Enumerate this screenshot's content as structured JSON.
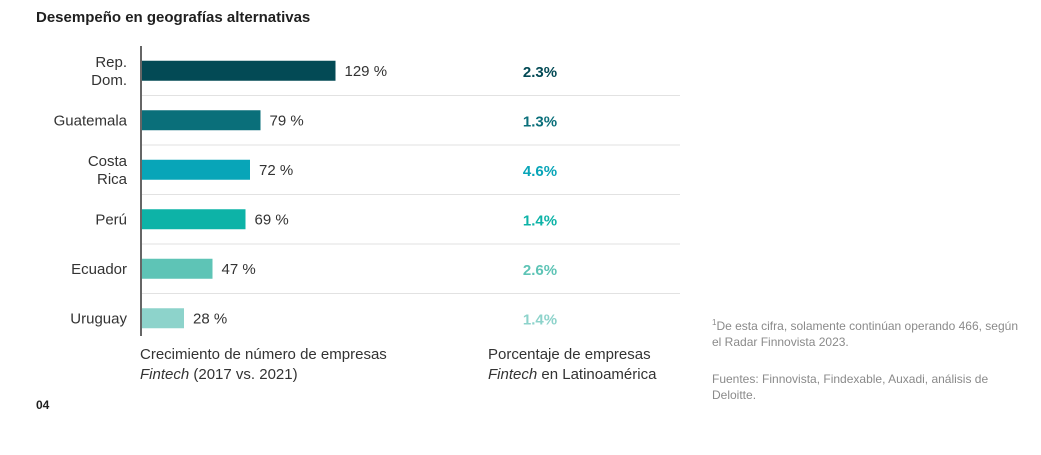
{
  "title": "Desempeño en geografías alternativas",
  "chart_data": {
    "type": "bar",
    "orientation": "horizontal",
    "categories": [
      [
        "Rep.",
        "Dom."
      ],
      [
        "Guatemala"
      ],
      [
        "Costa",
        "Rica"
      ],
      [
        "Perú"
      ],
      [
        "Ecuador"
      ],
      [
        "Uruguay"
      ]
    ],
    "values": [
      129,
      79,
      72,
      69,
      47,
      28
    ],
    "value_labels": [
      "129 %",
      "79 %",
      "72 %",
      "69 %",
      "47 %",
      "28 %"
    ],
    "bar_colors": [
      "#034a55",
      "#0a6f7a",
      "#08a5b8",
      "#0db3a7",
      "#5ec4b6",
      "#8dd3cb"
    ],
    "percentages": [
      "2.3%",
      "1.3%",
      "4.6%",
      "1.4%",
      "2.6%",
      "1.4%"
    ],
    "percentage_colors": [
      "#034a55",
      "#0a6f7a",
      "#08a5b8",
      "#0db3a7",
      "#5ec4b6",
      "#8dd3cb"
    ],
    "grid": true
  },
  "xcaption_left": {
    "line1": "Crecimiento de número de empresas",
    "italic": "Fintech",
    "rest": " (2017 vs. 2021)"
  },
  "xcaption_right": {
    "line1": "Porcentaje de empresas",
    "italic": "Fintech",
    "rest": " en Latinoamérica"
  },
  "footnote1": {
    "sup": "1",
    "text": "De esta cifra, solamente continúan operando 466, según el Radar Finnovista 2023."
  },
  "footnote2": "Fuentes: Finnovista, Findexable, Auxadi, análisis de Deloitte.",
  "page_number": "04"
}
